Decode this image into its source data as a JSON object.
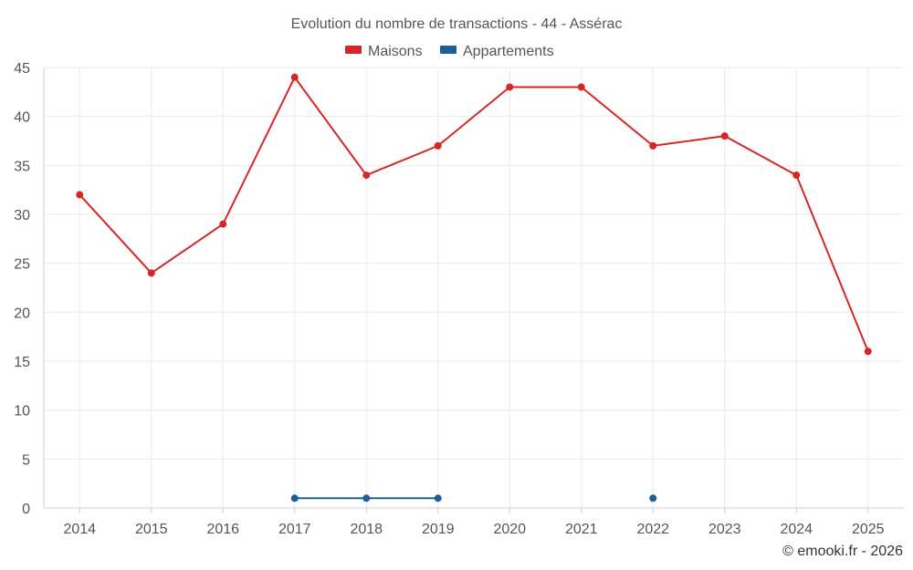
{
  "chart_data": {
    "type": "line",
    "title": "Evolution du nombre de transactions - 44 - Assérac",
    "categories": [
      "2014",
      "2015",
      "2016",
      "2017",
      "2018",
      "2019",
      "2020",
      "2021",
      "2022",
      "2023",
      "2024",
      "2025"
    ],
    "ylim": [
      0,
      45
    ],
    "yticks": [
      0,
      5,
      10,
      15,
      20,
      25,
      30,
      35,
      40,
      45
    ],
    "grid": true,
    "legend_position": "top-center",
    "series": [
      {
        "name": "Maisons",
        "color": "#d62728",
        "values": [
          32,
          24,
          29,
          44,
          34,
          37,
          43,
          43,
          37,
          38,
          34,
          16
        ]
      },
      {
        "name": "Appartements",
        "color": "#1f5f99",
        "values": [
          null,
          null,
          null,
          1,
          1,
          1,
          null,
          null,
          1,
          null,
          null,
          null
        ]
      }
    ]
  },
  "credit": "© emooki.fr - 2026"
}
